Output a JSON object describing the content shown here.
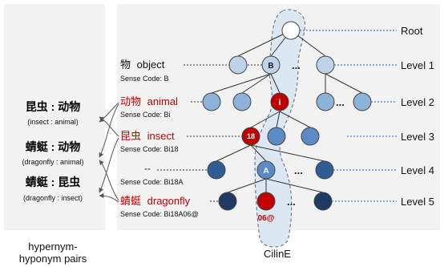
{
  "left_panel": {
    "pairs": [
      {
        "main": "昆虫 : 动物",
        "sub": "(insect : animal)"
      },
      {
        "main": "蜻蜓 : 动物",
        "sub": "(dragonfly : animal)"
      },
      {
        "main": "蜻蜓 : 昆虫",
        "sub": "(dragonfly : insect)"
      }
    ],
    "caption_line1": "hypernym-",
    "caption_line2": "hyponym pairs"
  },
  "right_panel": {
    "caption": "CilinE",
    "levels": [
      "Root",
      "Level 1",
      "Level 2",
      "Level 3",
      "Level 4",
      "Level 5"
    ],
    "entries": [
      {
        "word": "物",
        "english": "object",
        "sense_code": "Sense Code: B"
      },
      {
        "word": "动物",
        "english": "animal",
        "sense_code": "Sense Code: Bi"
      },
      {
        "word": "昆虫",
        "english": "insect",
        "sense_code": "Sense Code: Bi18"
      },
      {
        "word": "--",
        "english": "",
        "sense_code": "Sense Code: Bi18A"
      },
      {
        "word": "蜻蜓",
        "english": "dragonfly",
        "sense_code": "Sense Code: Bi18A06@"
      }
    ],
    "node_labels": {
      "l1": "B",
      "l2": "i",
      "l3": "18",
      "l4": "A",
      "l5": "06@"
    },
    "ellipsis": "..."
  },
  "colors": {
    "panel_bg": "#f2f2f2",
    "path_bg": "#dbe7f3",
    "highlight_red": "#c00000",
    "l1_node": "#bdd3ea",
    "l2_node": "#8eb3db",
    "l3_node": "#5b8ac4",
    "l4_node": "#2f5d94",
    "l5_node": "#1f3b63",
    "level_line": "#3b7fd1"
  }
}
